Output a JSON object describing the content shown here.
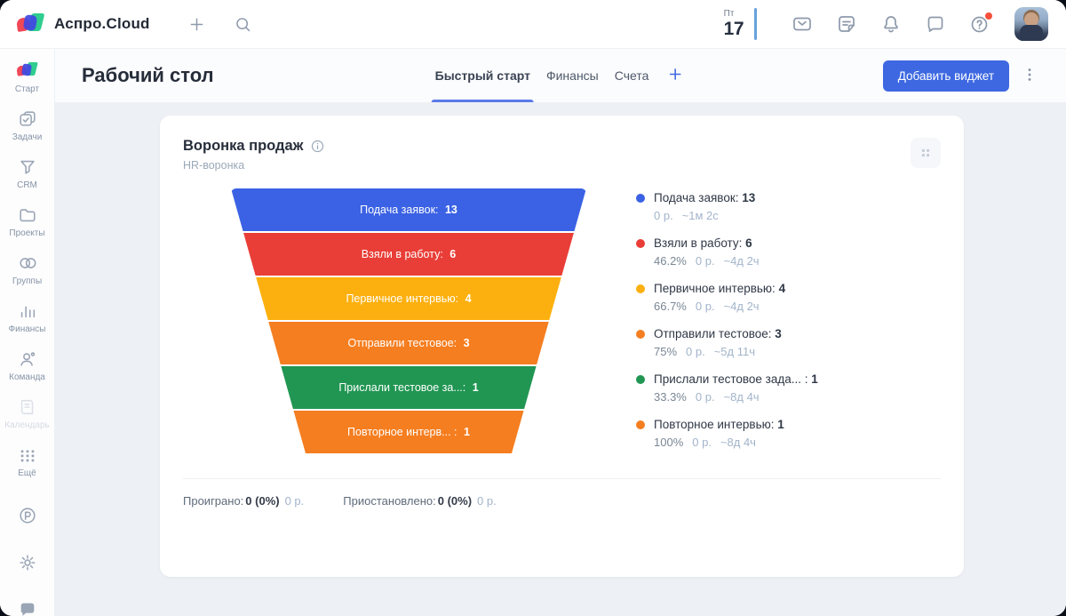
{
  "topbar": {
    "app_name": "Аспро.Cloud",
    "date": {
      "weekday": "Пт",
      "day": "17"
    },
    "icons": [
      "mail-icon",
      "notes-icon",
      "bell-icon",
      "chat-icon",
      "help-icon"
    ]
  },
  "sidebar": {
    "items": [
      {
        "id": "start",
        "label": "Старт",
        "icon": "aspro-mini-logo-icon",
        "active": true
      },
      {
        "id": "tasks",
        "label": "Задачи",
        "icon": "tasks-icon"
      },
      {
        "id": "crm",
        "label": "CRM",
        "icon": "crm-funnel-icon"
      },
      {
        "id": "projects",
        "label": "Проекты",
        "icon": "projects-icon"
      },
      {
        "id": "groups",
        "label": "Группы",
        "icon": "groups-icon"
      },
      {
        "id": "finance",
        "label": "Финансы",
        "icon": "finance-icon"
      },
      {
        "id": "team",
        "label": "Команда",
        "icon": "team-icon"
      },
      {
        "id": "calendar",
        "label": "Календарь",
        "icon": "book-icon",
        "faded": true
      },
      {
        "id": "more",
        "label": "Ещё",
        "icon": "more-grid-icon"
      }
    ],
    "bottom_items": [
      {
        "id": "payments",
        "icon": "p-badge-icon"
      },
      {
        "id": "settings",
        "icon": "gear-icon"
      },
      {
        "id": "support",
        "icon": "chat-bubble-icon"
      }
    ]
  },
  "header": {
    "title": "Рабочий стол",
    "tabs": [
      {
        "label": "Быстрый старт",
        "active": true
      },
      {
        "label": "Финансы",
        "active": false
      },
      {
        "label": "Счета",
        "active": false
      }
    ],
    "add_widget_label": "Добавить виджет"
  },
  "widget": {
    "title": "Воронка продаж",
    "subtitle": "HR-воронка",
    "footer": [
      {
        "label": "Проиграно:",
        "value": "0 (0%)",
        "money": "0 р."
      },
      {
        "label": "Приостановлено:",
        "value": "0 (0%)",
        "money": "0 р."
      }
    ]
  },
  "chart_data": {
    "type": "funnel",
    "title": "Воронка продаж",
    "subtitle": "HR-воронка",
    "colors": {
      "blue": "#3B62E4",
      "red": "#E93E37",
      "yellow": "#FCB00F",
      "orange": "#F57E20",
      "green": "#219653"
    },
    "stages": [
      {
        "funnel_label": "Подача заявок:",
        "legend_label": "Подача заявок:",
        "count": 13,
        "color": "#3B62E4",
        "conversion": null,
        "money": "0 р.",
        "duration": "~1м 2с"
      },
      {
        "funnel_label": "Взяли в работу:",
        "legend_label": "Взяли в работу:",
        "count": 6,
        "color": "#E93E37",
        "conversion": "46.2%",
        "money": "0 р.",
        "duration": "~4д 2ч"
      },
      {
        "funnel_label": "Первичное интервью:",
        "legend_label": "Первичное интервью:",
        "count": 4,
        "color": "#FCB00F",
        "conversion": "66.7%",
        "money": "0 р.",
        "duration": "~4д 2ч"
      },
      {
        "funnel_label": "Отправили тестовое:",
        "legend_label": "Отправили тестовое:",
        "count": 3,
        "color": "#F57E20",
        "conversion": "75%",
        "money": "0 р.",
        "duration": "~5д 11ч"
      },
      {
        "funnel_label": "Прислали тестовое за...:",
        "legend_label": "Прислали тестовое зада... :",
        "count": 1,
        "color": "#219653",
        "conversion": "33.3%",
        "money": "0 р.",
        "duration": "~8д 4ч"
      },
      {
        "funnel_label": "Повторное интерв... :",
        "legend_label": "Повторное интервью:",
        "count": 1,
        "color": "#F57E20",
        "conversion": "100%",
        "money": "0 р.",
        "duration": "~8д 4ч"
      }
    ],
    "funnel_geometry": {
      "top_width_ratio": 1.0,
      "bottom_width_ratio": 0.58
    },
    "legend_position": "right"
  }
}
